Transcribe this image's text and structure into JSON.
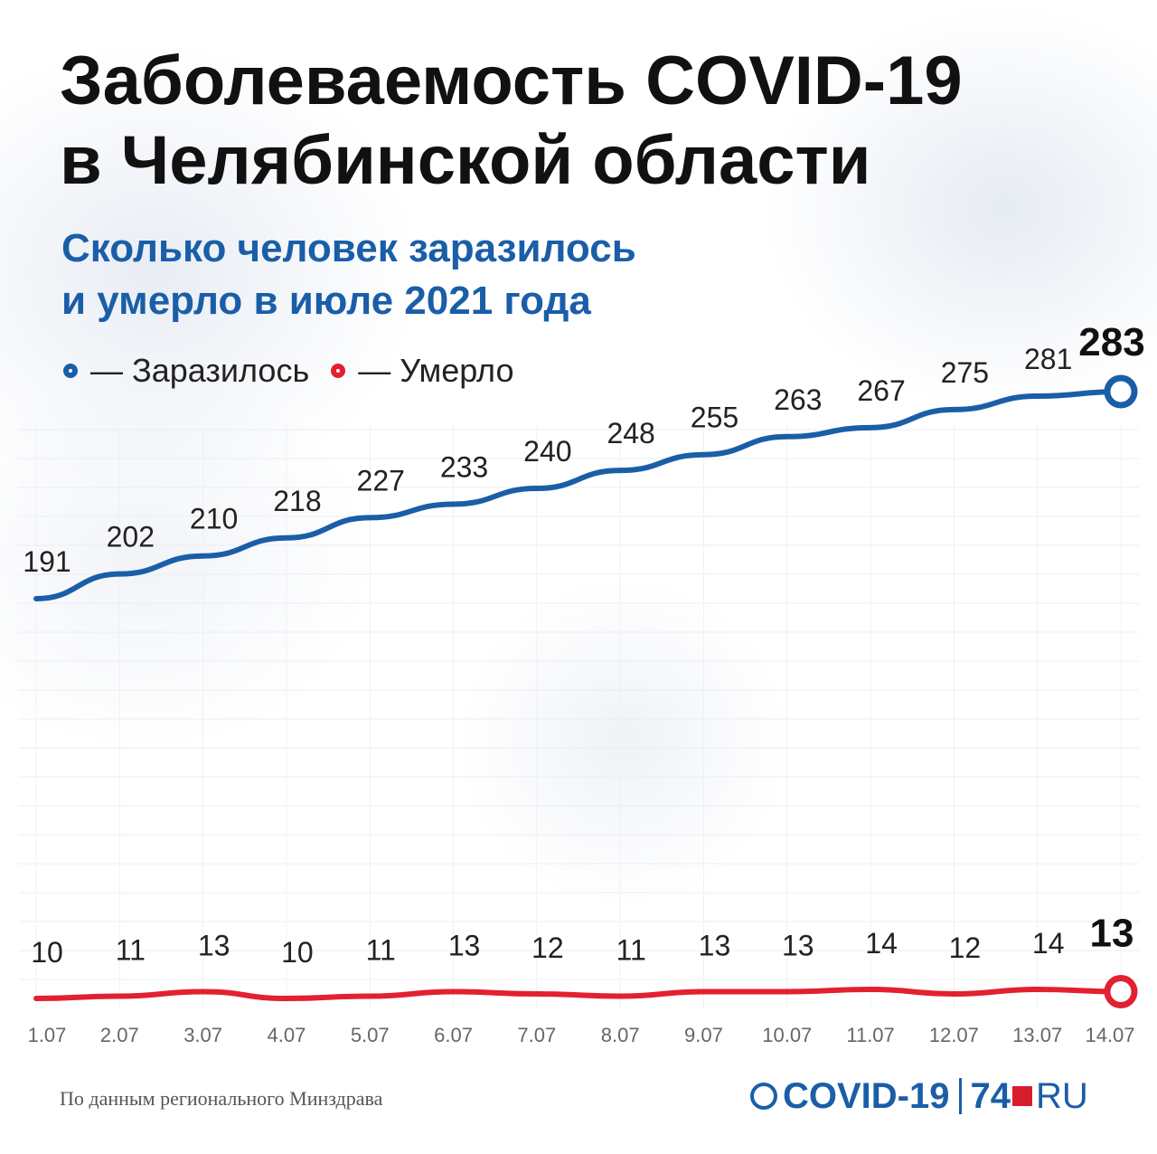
{
  "title_line1": "Заболеваемость COVID-19",
  "title_line2": "в Челябинской области",
  "subtitle_line1": "Сколько человек заразилось",
  "subtitle_line2": "и умерло в июле 2021 года",
  "legend": [
    {
      "label": "— Заразилось",
      "color": "#1a5ea8"
    },
    {
      "label": "— Умерло",
      "color": "#e3202f"
    }
  ],
  "source": "По данным регионального Минздрава",
  "logo": {
    "left": "COVID-19",
    "right_num": "74",
    "right_text": "RU"
  },
  "chart_data": {
    "type": "line",
    "x": [
      "1.07",
      "2.07",
      "3.07",
      "4.07",
      "5.07",
      "6.07",
      "7.07",
      "8.07",
      "9.07",
      "10.07",
      "11.07",
      "12.07",
      "13.07",
      "14.07"
    ],
    "series": [
      {
        "name": "Заразилось",
        "color": "#1a5ea8",
        "values": [
          191,
          202,
          210,
          218,
          227,
          233,
          240,
          248,
          255,
          263,
          267,
          275,
          281,
          283
        ]
      },
      {
        "name": "Умерло",
        "color": "#e3202f",
        "values": [
          10,
          11,
          13,
          10,
          11,
          13,
          12,
          11,
          13,
          13,
          14,
          12,
          14,
          13
        ]
      }
    ],
    "grid": true
  }
}
